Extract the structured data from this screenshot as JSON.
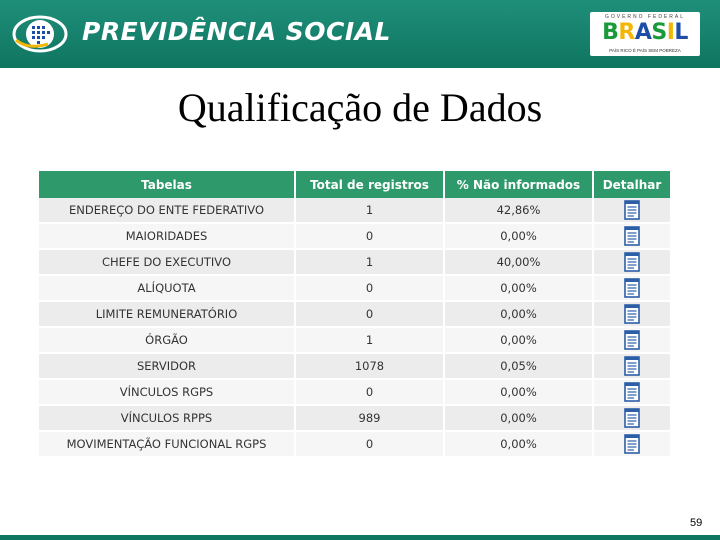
{
  "header": {
    "title": "PREVIDÊNCIA SOCIAL",
    "govt_top": "GOVERNO FEDERAL",
    "govt_word": "BRASIL",
    "govt_slogan": "PAÍS RICO É PAÍS SEM POBREZA"
  },
  "page_title": "Qualificação de Dados",
  "table": {
    "columns": [
      "Tabelas",
      "Total de registros",
      "% Não informados",
      "Detalhar"
    ],
    "rows": [
      {
        "tabela": "ENDEREÇO DO ENTE FEDERATIVO",
        "total": "1",
        "nao_informados": "42,86%"
      },
      {
        "tabela": "MAIORIDADES",
        "total": "0",
        "nao_informados": "0,00%"
      },
      {
        "tabela": "CHEFE DO EXECUTIVO",
        "total": "1",
        "nao_informados": "40,00%"
      },
      {
        "tabela": "ALÍQUOTA",
        "total": "0",
        "nao_informados": "0,00%"
      },
      {
        "tabela": "LIMITE REMUNERATÓRIO",
        "total": "0",
        "nao_informados": "0,00%"
      },
      {
        "tabela": "ÓRGÃO",
        "total": "1",
        "nao_informados": "0,00%"
      },
      {
        "tabela": "SERVIDOR",
        "total": "1078",
        "nao_informados": "0,05%"
      },
      {
        "tabela": "VÍNCULOS RGPS",
        "total": "0",
        "nao_informados": "0,00%"
      },
      {
        "tabela": "VÍNCULOS RPPS",
        "total": "989",
        "nao_informados": "0,00%"
      },
      {
        "tabela": "MOVIMENTAÇÃO FUNCIONAL RGPS",
        "total": "0",
        "nao_informados": "0,00%"
      }
    ],
    "detail_icon": "document-icon"
  },
  "page_number": "59",
  "colors": {
    "banner": "#0f7560",
    "table_header": "#2e9a6c",
    "row_odd": "#ececec",
    "row_even": "#f6f6f6",
    "icon_blue": "#2c5fa8"
  }
}
